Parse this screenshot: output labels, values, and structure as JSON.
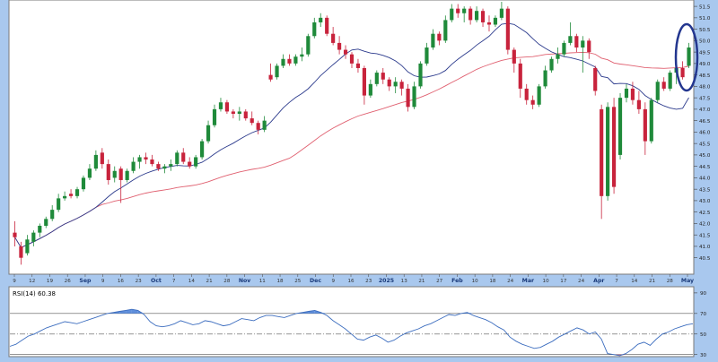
{
  "chart_data": [
    {
      "type": "candlestick",
      "title": "",
      "ylim": [
        39.9,
        51.7
      ],
      "y_ticks": [
        "40.5",
        "41.0",
        "41.5",
        "42.0",
        "42.5",
        "43.0",
        "43.5",
        "44.0",
        "44.5",
        "45.0",
        "45.5",
        "46.0",
        "46.5",
        "47.0",
        "47.5",
        "48.0",
        "48.5",
        "49.0",
        "49.5",
        "50.0",
        "50.5",
        "51.0",
        "51.5"
      ],
      "x_tick_labels": [
        "9",
        "12",
        "19",
        "26",
        "Sep",
        "9",
        "16",
        "23",
        "Oct",
        "7",
        "14",
        "21",
        "28",
        "Nov",
        "11",
        "18",
        "25",
        "Dec",
        "9",
        "16",
        "23",
        "2025",
        "13",
        "21",
        "27",
        "Feb",
        "10",
        "18",
        "24",
        "Mar",
        "10",
        "17",
        "24",
        "Apr",
        "7",
        "14",
        "21",
        "28",
        "May"
      ],
      "grid": false,
      "moving_averages": [
        {
          "key": "fast",
          "color": "#2b3a8c"
        },
        {
          "key": "slow",
          "color": "#e06070"
        }
      ],
      "candles": [
        {
          "o": 41.6,
          "h": 42.1,
          "l": 41.0,
          "c": 41.4
        },
        {
          "o": 41.0,
          "h": 41.2,
          "l": 40.2,
          "c": 40.5
        },
        {
          "o": 40.7,
          "h": 41.5,
          "l": 40.6,
          "c": 41.3
        },
        {
          "o": 41.2,
          "h": 41.7,
          "l": 41.0,
          "c": 41.6
        },
        {
          "o": 41.6,
          "h": 42.0,
          "l": 41.4,
          "c": 41.9
        },
        {
          "o": 41.9,
          "h": 42.3,
          "l": 41.8,
          "c": 42.2
        },
        {
          "o": 42.2,
          "h": 42.8,
          "l": 42.1,
          "c": 42.6
        },
        {
          "o": 42.6,
          "h": 43.3,
          "l": 42.5,
          "c": 43.1
        },
        {
          "o": 43.1,
          "h": 43.4,
          "l": 43.0,
          "c": 43.2
        },
        {
          "o": 43.3,
          "h": 43.5,
          "l": 43.1,
          "c": 43.2
        },
        {
          "o": 43.2,
          "h": 43.6,
          "l": 43.1,
          "c": 43.5
        },
        {
          "o": 43.5,
          "h": 44.1,
          "l": 43.4,
          "c": 44.0
        },
        {
          "o": 44.0,
          "h": 44.6,
          "l": 43.9,
          "c": 44.4
        },
        {
          "o": 44.4,
          "h": 45.2,
          "l": 44.3,
          "c": 45.0
        },
        {
          "o": 45.1,
          "h": 45.3,
          "l": 44.4,
          "c": 44.6
        },
        {
          "o": 44.6,
          "h": 44.8,
          "l": 43.7,
          "c": 43.9
        },
        {
          "o": 44.0,
          "h": 44.5,
          "l": 43.8,
          "c": 44.3
        },
        {
          "o": 44.4,
          "h": 44.5,
          "l": 42.9,
          "c": 43.9
        },
        {
          "o": 43.9,
          "h": 44.4,
          "l": 43.8,
          "c": 44.3
        },
        {
          "o": 44.3,
          "h": 44.9,
          "l": 44.2,
          "c": 44.7
        },
        {
          "o": 44.7,
          "h": 45.0,
          "l": 44.4,
          "c": 44.9
        },
        {
          "o": 44.9,
          "h": 45.1,
          "l": 44.6,
          "c": 44.8
        },
        {
          "o": 44.8,
          "h": 45.0,
          "l": 44.5,
          "c": 44.6
        },
        {
          "o": 44.6,
          "h": 44.7,
          "l": 44.3,
          "c": 44.4
        },
        {
          "o": 44.4,
          "h": 44.6,
          "l": 44.2,
          "c": 44.5
        },
        {
          "o": 44.5,
          "h": 44.8,
          "l": 44.3,
          "c": 44.6
        },
        {
          "o": 44.6,
          "h": 45.2,
          "l": 44.5,
          "c": 45.1
        },
        {
          "o": 45.1,
          "h": 45.3,
          "l": 44.6,
          "c": 44.7
        },
        {
          "o": 44.7,
          "h": 44.9,
          "l": 44.4,
          "c": 44.5
        },
        {
          "o": 44.5,
          "h": 45.0,
          "l": 44.4,
          "c": 44.9
        },
        {
          "o": 44.9,
          "h": 45.7,
          "l": 44.8,
          "c": 45.6
        },
        {
          "o": 45.6,
          "h": 46.5,
          "l": 45.5,
          "c": 46.3
        },
        {
          "o": 46.3,
          "h": 47.2,
          "l": 46.2,
          "c": 47.0
        },
        {
          "o": 47.0,
          "h": 47.5,
          "l": 46.9,
          "c": 47.3
        },
        {
          "o": 47.3,
          "h": 47.4,
          "l": 46.8,
          "c": 46.9
        },
        {
          "o": 46.9,
          "h": 47.0,
          "l": 46.6,
          "c": 46.8
        },
        {
          "o": 46.8,
          "h": 47.1,
          "l": 46.5,
          "c": 46.9
        },
        {
          "o": 46.9,
          "h": 47.0,
          "l": 46.5,
          "c": 46.6
        },
        {
          "o": 46.6,
          "h": 46.9,
          "l": 46.3,
          "c": 46.4
        },
        {
          "o": 46.4,
          "h": 46.5,
          "l": 45.9,
          "c": 46.1
        },
        {
          "o": 46.1,
          "h": 46.7,
          "l": 46.0,
          "c": 46.5
        },
        {
          "o": 48.5,
          "h": 49.0,
          "l": 48.2,
          "c": 48.3
        },
        {
          "o": 48.4,
          "h": 49.0,
          "l": 48.3,
          "c": 48.9
        },
        {
          "o": 48.9,
          "h": 49.4,
          "l": 48.8,
          "c": 49.2
        },
        {
          "o": 49.2,
          "h": 49.4,
          "l": 48.9,
          "c": 49.0
        },
        {
          "o": 49.0,
          "h": 49.4,
          "l": 48.9,
          "c": 49.3
        },
        {
          "o": 49.3,
          "h": 49.7,
          "l": 49.1,
          "c": 49.4
        },
        {
          "o": 49.4,
          "h": 50.3,
          "l": 49.3,
          "c": 50.2
        },
        {
          "o": 50.2,
          "h": 51.0,
          "l": 50.1,
          "c": 50.8
        },
        {
          "o": 50.8,
          "h": 51.2,
          "l": 50.6,
          "c": 51.0
        },
        {
          "o": 51.0,
          "h": 51.1,
          "l": 50.2,
          "c": 50.3
        },
        {
          "o": 50.3,
          "h": 50.6,
          "l": 49.8,
          "c": 49.9
        },
        {
          "o": 49.9,
          "h": 50.2,
          "l": 49.4,
          "c": 49.6
        },
        {
          "o": 49.6,
          "h": 49.8,
          "l": 49.2,
          "c": 49.4
        },
        {
          "o": 49.4,
          "h": 49.5,
          "l": 48.8,
          "c": 49.0
        },
        {
          "o": 49.0,
          "h": 49.2,
          "l": 48.6,
          "c": 48.8
        },
        {
          "o": 48.8,
          "h": 48.9,
          "l": 47.2,
          "c": 47.6
        },
        {
          "o": 47.6,
          "h": 48.3,
          "l": 47.5,
          "c": 48.1
        },
        {
          "o": 48.1,
          "h": 48.7,
          "l": 48.0,
          "c": 48.6
        },
        {
          "o": 48.6,
          "h": 48.8,
          "l": 48.1,
          "c": 48.3
        },
        {
          "o": 48.3,
          "h": 48.4,
          "l": 47.8,
          "c": 48.0
        },
        {
          "o": 48.0,
          "h": 48.4,
          "l": 47.7,
          "c": 48.2
        },
        {
          "o": 48.2,
          "h": 48.3,
          "l": 47.6,
          "c": 47.9
        },
        {
          "o": 47.9,
          "h": 48.1,
          "l": 46.9,
          "c": 47.1
        },
        {
          "o": 47.1,
          "h": 48.2,
          "l": 47.0,
          "c": 48.0
        },
        {
          "o": 48.0,
          "h": 49.1,
          "l": 47.9,
          "c": 49.0
        },
        {
          "o": 49.0,
          "h": 49.9,
          "l": 48.9,
          "c": 49.7
        },
        {
          "o": 49.7,
          "h": 50.5,
          "l": 49.6,
          "c": 50.3
        },
        {
          "o": 50.3,
          "h": 50.4,
          "l": 49.8,
          "c": 50.0
        },
        {
          "o": 50.0,
          "h": 51.1,
          "l": 49.9,
          "c": 50.9
        },
        {
          "o": 50.9,
          "h": 51.6,
          "l": 50.8,
          "c": 51.4
        },
        {
          "o": 51.4,
          "h": 51.6,
          "l": 51.0,
          "c": 51.2
        },
        {
          "o": 51.2,
          "h": 51.5,
          "l": 50.8,
          "c": 51.4
        },
        {
          "o": 51.4,
          "h": 51.5,
          "l": 50.7,
          "c": 50.9
        },
        {
          "o": 50.9,
          "h": 51.5,
          "l": 50.8,
          "c": 51.3
        },
        {
          "o": 51.3,
          "h": 51.4,
          "l": 50.6,
          "c": 50.8
        },
        {
          "o": 50.8,
          "h": 51.1,
          "l": 50.4,
          "c": 50.7
        },
        {
          "o": 50.7,
          "h": 51.1,
          "l": 50.6,
          "c": 51.0
        },
        {
          "o": 51.0,
          "h": 51.7,
          "l": 50.9,
          "c": 51.4
        },
        {
          "o": 51.4,
          "h": 51.5,
          "l": 49.4,
          "c": 49.6
        },
        {
          "o": 49.6,
          "h": 49.7,
          "l": 48.6,
          "c": 49.0
        },
        {
          "o": 49.0,
          "h": 49.2,
          "l": 47.5,
          "c": 47.9
        },
        {
          "o": 47.9,
          "h": 48.1,
          "l": 47.2,
          "c": 47.4
        },
        {
          "o": 47.4,
          "h": 47.6,
          "l": 47.0,
          "c": 47.2
        },
        {
          "o": 47.2,
          "h": 48.1,
          "l": 47.1,
          "c": 48.0
        },
        {
          "o": 48.0,
          "h": 48.9,
          "l": 47.9,
          "c": 48.7
        },
        {
          "o": 48.7,
          "h": 49.3,
          "l": 48.6,
          "c": 49.2
        },
        {
          "o": 49.2,
          "h": 49.7,
          "l": 49.0,
          "c": 49.4
        },
        {
          "o": 49.4,
          "h": 50.0,
          "l": 49.3,
          "c": 49.9
        },
        {
          "o": 49.9,
          "h": 50.8,
          "l": 49.8,
          "c": 50.2
        },
        {
          "o": 50.2,
          "h": 50.3,
          "l": 49.5,
          "c": 49.7
        },
        {
          "o": 49.7,
          "h": 50.2,
          "l": 48.6,
          "c": 50.0
        },
        {
          "o": 50.0,
          "h": 50.1,
          "l": 49.2,
          "c": 49.5
        },
        {
          "o": 48.8,
          "h": 48.9,
          "l": 47.6,
          "c": 47.8
        },
        {
          "o": 47.0,
          "h": 47.2,
          "l": 42.2,
          "c": 43.2
        },
        {
          "o": 43.2,
          "h": 47.3,
          "l": 43.0,
          "c": 47.1
        },
        {
          "o": 47.1,
          "h": 47.5,
          "l": 43.3,
          "c": 43.6
        },
        {
          "o": 45.0,
          "h": 47.7,
          "l": 44.8,
          "c": 47.5
        },
        {
          "o": 47.5,
          "h": 48.1,
          "l": 47.3,
          "c": 47.9
        },
        {
          "o": 47.9,
          "h": 48.2,
          "l": 47.2,
          "c": 47.4
        },
        {
          "o": 47.4,
          "h": 47.8,
          "l": 46.8,
          "c": 47.0
        },
        {
          "o": 47.0,
          "h": 47.3,
          "l": 45.0,
          "c": 45.6
        },
        {
          "o": 45.6,
          "h": 47.5,
          "l": 45.5,
          "c": 47.4
        },
        {
          "o": 47.4,
          "h": 48.3,
          "l": 47.3,
          "c": 48.2
        },
        {
          "o": 48.2,
          "h": 48.4,
          "l": 47.8,
          "c": 47.9
        },
        {
          "o": 47.9,
          "h": 48.7,
          "l": 47.8,
          "c": 48.6
        },
        {
          "o": 48.6,
          "h": 49.1,
          "l": 48.1,
          "c": 48.8
        },
        {
          "o": 48.8,
          "h": 49.1,
          "l": 48.3,
          "c": 48.4
        },
        {
          "o": 48.9,
          "h": 49.9,
          "l": 48.8,
          "c": 49.7
        }
      ]
    },
    {
      "type": "line",
      "title": "RSI(14) 60.38",
      "ylim": [
        28,
        96
      ],
      "y_ticks": [
        "90",
        "70",
        "50",
        "30"
      ],
      "levels": {
        "overbought": 70,
        "mid": 50,
        "oversold": 30
      },
      "values": [
        38,
        40,
        44,
        48,
        50,
        53,
        56,
        58,
        60,
        62,
        61,
        60,
        62,
        64,
        66,
        68,
        70,
        71,
        72,
        73,
        74,
        73,
        69,
        62,
        58,
        57,
        58,
        60,
        63,
        61,
        59,
        60,
        63,
        62,
        60,
        58,
        59,
        62,
        65,
        64,
        63,
        66,
        68,
        68,
        67,
        66,
        68,
        70,
        71,
        72,
        73,
        71,
        68,
        63,
        59,
        55,
        50,
        45,
        44,
        47,
        49,
        46,
        42,
        44,
        48,
        51,
        53,
        55,
        58,
        60,
        63,
        66,
        69,
        68,
        70,
        71,
        68,
        66,
        64,
        61,
        57,
        54,
        47,
        43,
        40,
        38,
        36,
        37,
        40,
        43,
        47,
        50,
        53,
        56,
        54,
        50,
        52,
        45,
        31,
        30,
        29,
        31,
        35,
        40,
        42,
        39,
        45,
        50,
        52,
        55,
        57,
        59,
        60
      ]
    }
  ],
  "indicator_label": "RSI(14) 60.38",
  "colors": {
    "background": "#a9c8ee",
    "plot": "#ffffff",
    "up": "#1f8a3a",
    "down": "#c8233c",
    "rsi_line": "#3c6dbf",
    "rsi_fill": "#4e83d8",
    "rsi_fill_low": "#e05a8a",
    "highlight_ellipse": "#23368f"
  }
}
